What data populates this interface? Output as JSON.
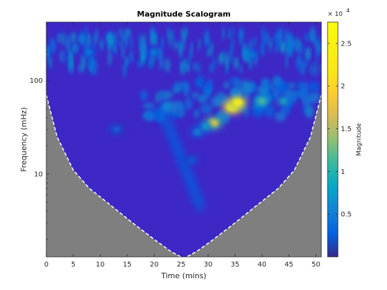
{
  "chart_data": {
    "type": "heatmap",
    "title": "Magnitude Scalogram",
    "xlabel": "Time (mins)",
    "ylabel": "Frequency (mHz)",
    "xlim": [
      0,
      51
    ],
    "ylim": [
      1.3,
      420
    ],
    "y_scale": "log",
    "x_ticks": [
      0,
      5,
      10,
      15,
      20,
      25,
      30,
      35,
      40,
      45,
      50
    ],
    "x_tick_labels": [
      "0",
      "5",
      "10",
      "15",
      "20",
      "25",
      "30",
      "35",
      "40",
      "45",
      "50"
    ],
    "y_ticks": [
      10,
      100
    ],
    "y_tick_labels": [
      "10",
      "100"
    ],
    "colormap": "parula",
    "colorbar": {
      "label": "Magnitude",
      "multiplier": "× 10",
      "exponent": "4",
      "range": [
        0,
        2.75
      ],
      "ticks": [
        0.5,
        1,
        1.5,
        2,
        2.5
      ],
      "tick_labels": [
        "0.5",
        "1",
        "1.5",
        "2",
        "2.5"
      ]
    },
    "cone_of_influence": {
      "style": "dashed white",
      "shaded_color": "#7f7f7f",
      "x": [
        0,
        2,
        5,
        8,
        12,
        16,
        20,
        23,
        25.5,
        28,
        31,
        35,
        39,
        43,
        46,
        49,
        51
      ],
      "y": [
        70,
        25,
        11,
        7,
        4.6,
        3,
        2,
        1.5,
        1.25,
        1.5,
        2,
        3,
        4.6,
        7,
        11,
        25,
        70
      ]
    },
    "hotspots": [
      {
        "time": 34.5,
        "frequency": 52,
        "magnitude": 2.7
      },
      {
        "time": 35.5,
        "frequency": 58,
        "magnitude": 2.4
      },
      {
        "time": 31,
        "frequency": 35,
        "magnitude": 1.9
      },
      {
        "time": 40,
        "frequency": 60,
        "magnitude": 1.2
      },
      {
        "time": 44,
        "frequency": 60,
        "magnitude": 0.9
      },
      {
        "time": 29.5,
        "frequency": 32,
        "magnitude": 0.8
      },
      {
        "time": 28,
        "frequency": 28,
        "magnitude": 0.6
      },
      {
        "time": 13,
        "frequency": 30,
        "magnitude": 0.35
      },
      {
        "time": 27,
        "frequency": 14,
        "magnitude": 0.3
      },
      {
        "time": 20,
        "frequency": 200,
        "magnitude": 0.5
      },
      {
        "time": 8,
        "frequency": 200,
        "magnitude": 0.5
      },
      {
        "time": 38,
        "frequency": 190,
        "magnitude": 0.5
      }
    ],
    "background_magnitude": 0.05,
    "grid": false
  }
}
